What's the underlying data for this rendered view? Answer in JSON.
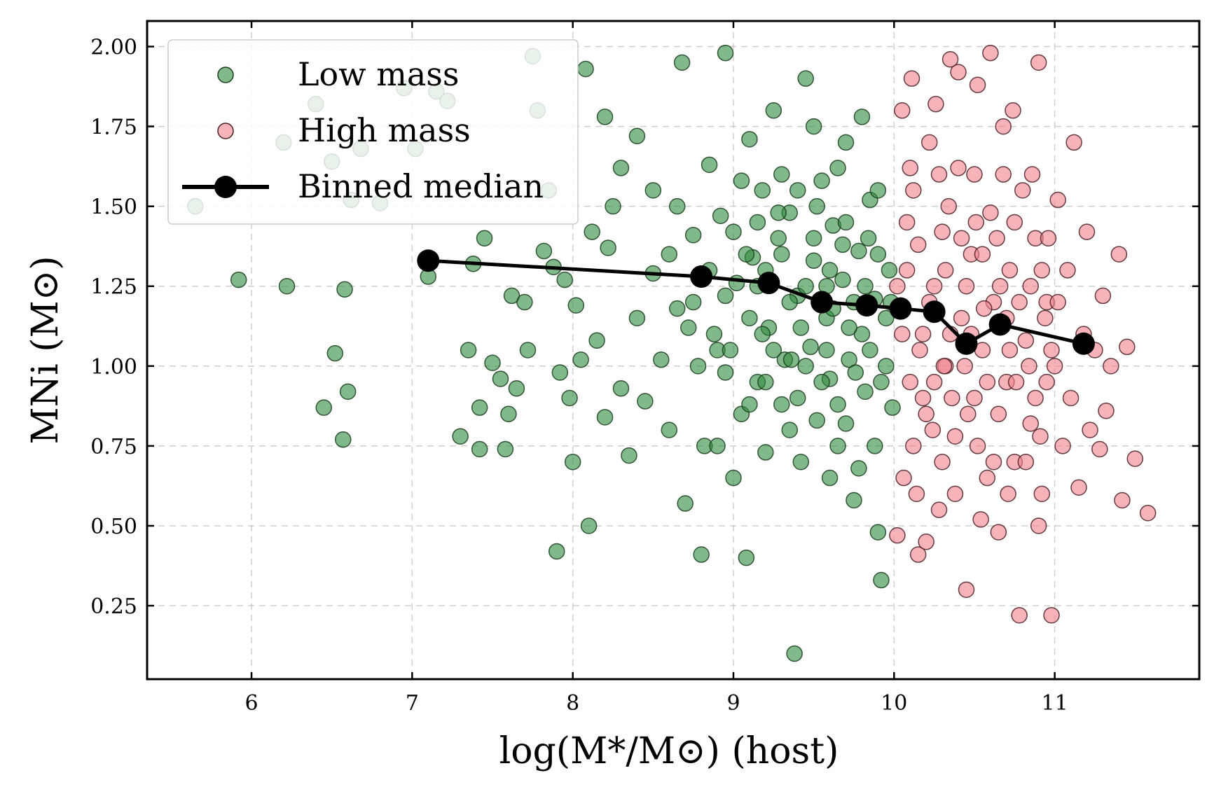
{
  "chart_data": {
    "type": "scatter",
    "title": "",
    "xlabel": "log(M*/M⊙) (host)",
    "ylabel": "MNi (M⊙)",
    "xlim": [
      5.35,
      11.9
    ],
    "ylim": [
      0.02,
      2.08
    ],
    "x_ticks": [
      6,
      7,
      8,
      9,
      10,
      11
    ],
    "x_tick_labels": [
      "6",
      "7",
      "8",
      "9",
      "10",
      "11"
    ],
    "y_ticks": [
      0.25,
      0.5,
      0.75,
      1.0,
      1.25,
      1.5,
      1.75,
      2.0
    ],
    "y_tick_labels": [
      "0.25",
      "0.50",
      "0.75",
      "1.00",
      "1.25",
      "1.50",
      "1.75",
      "2.00"
    ],
    "grid": true,
    "legend_position": "top-left",
    "series": [
      {
        "name": "Low mass",
        "kind": "scatter",
        "color": "#2e8b3e",
        "edge_color": "#1a3d1f",
        "points": [
          [
            5.65,
            1.5
          ],
          [
            5.92,
            1.27
          ],
          [
            6.22,
            1.25
          ],
          [
            6.2,
            1.7
          ],
          [
            6.4,
            1.82
          ],
          [
            6.5,
            1.64
          ],
          [
            6.52,
            1.04
          ],
          [
            6.45,
            0.87
          ],
          [
            6.57,
            0.77
          ],
          [
            6.6,
            0.92
          ],
          [
            6.58,
            1.24
          ],
          [
            6.62,
            1.52
          ],
          [
            6.68,
            1.68
          ],
          [
            6.8,
            1.51
          ],
          [
            6.95,
            1.87
          ],
          [
            7.02,
            1.68
          ],
          [
            7.1,
            1.28
          ],
          [
            7.15,
            1.86
          ],
          [
            7.22,
            1.83
          ],
          [
            7.3,
            0.78
          ],
          [
            7.35,
            1.05
          ],
          [
            7.38,
            1.32
          ],
          [
            7.42,
            0.74
          ],
          [
            7.45,
            1.4
          ],
          [
            7.42,
            0.87
          ],
          [
            7.5,
            1.01
          ],
          [
            7.55,
            0.96
          ],
          [
            7.58,
            0.74
          ],
          [
            7.6,
            0.85
          ],
          [
            7.62,
            1.22
          ],
          [
            7.65,
            0.93
          ],
          [
            7.7,
            1.2
          ],
          [
            7.72,
            1.05
          ],
          [
            7.75,
            1.97
          ],
          [
            7.78,
            1.8
          ],
          [
            7.82,
            1.36
          ],
          [
            7.85,
            1.55
          ],
          [
            7.88,
            1.31
          ],
          [
            7.9,
            0.42
          ],
          [
            7.92,
            0.98
          ],
          [
            7.95,
            1.27
          ],
          [
            7.98,
            0.9
          ],
          [
            8.0,
            0.7
          ],
          [
            8.02,
            1.19
          ],
          [
            8.05,
            1.02
          ],
          [
            8.08,
            1.93
          ],
          [
            8.1,
            0.5
          ],
          [
            8.12,
            1.42
          ],
          [
            8.15,
            1.08
          ],
          [
            8.2,
            0.84
          ],
          [
            8.22,
            1.37
          ],
          [
            8.25,
            1.5
          ],
          [
            8.3,
            0.93
          ],
          [
            8.35,
            0.72
          ],
          [
            8.4,
            1.15
          ],
          [
            8.45,
            0.89
          ],
          [
            8.5,
            1.29
          ],
          [
            8.55,
            1.02
          ],
          [
            8.6,
            0.8
          ],
          [
            8.65,
            1.18
          ],
          [
            8.68,
            1.95
          ],
          [
            8.7,
            0.57
          ],
          [
            8.72,
            1.12
          ],
          [
            8.75,
            1.41
          ],
          [
            8.8,
            0.41
          ],
          [
            8.82,
            0.75
          ],
          [
            8.85,
            1.63
          ],
          [
            8.9,
            1.05
          ],
          [
            8.92,
            1.47
          ],
          [
            8.95,
            1.98
          ],
          [
            9.0,
            0.65
          ],
          [
            9.02,
            1.26
          ],
          [
            9.05,
            0.85
          ],
          [
            9.08,
            0.4
          ],
          [
            9.1,
            1.71
          ],
          [
            9.12,
            1.34
          ],
          [
            9.15,
            0.95
          ],
          [
            9.18,
            1.55
          ],
          [
            9.2,
            0.73
          ],
          [
            9.22,
            1.12
          ],
          [
            9.25,
            1.8
          ],
          [
            9.28,
            1.4
          ],
          [
            9.3,
            0.88
          ],
          [
            9.32,
            1.02
          ],
          [
            9.35,
            1.48
          ],
          [
            9.38,
            0.1
          ],
          [
            9.4,
            1.22
          ],
          [
            9.42,
            0.7
          ],
          [
            9.45,
            1.9
          ],
          [
            9.48,
            1.06
          ],
          [
            9.5,
            1.33
          ],
          [
            9.52,
            0.83
          ],
          [
            9.55,
            1.58
          ],
          [
            9.58,
            1.15
          ],
          [
            9.6,
            0.96
          ],
          [
            9.62,
            1.44
          ],
          [
            9.65,
            0.75
          ],
          [
            9.68,
            1.27
          ],
          [
            9.7,
            1.7
          ],
          [
            9.72,
            1.02
          ],
          [
            9.75,
            0.58
          ],
          [
            9.78,
            1.36
          ],
          [
            9.8,
            1.1
          ],
          [
            9.82,
            0.92
          ],
          [
            9.85,
            1.52
          ],
          [
            9.88,
            1.21
          ],
          [
            9.9,
            0.48
          ],
          [
            9.92,
            0.33
          ],
          [
            9.95,
            1.0
          ],
          [
            9.97,
            1.3
          ],
          [
            9.99,
            0.87
          ],
          [
            9.6,
            0.65
          ],
          [
            9.7,
            0.82
          ],
          [
            9.4,
            0.9
          ],
          [
            9.2,
            1.3
          ],
          [
            9.0,
            1.42
          ],
          [
            8.9,
            0.75
          ],
          [
            9.3,
            1.6
          ],
          [
            9.5,
            1.75
          ],
          [
            9.65,
            1.62
          ],
          [
            9.8,
            1.78
          ],
          [
            9.9,
            1.55
          ],
          [
            9.1,
            1.15
          ],
          [
            9.35,
            1.2
          ],
          [
            9.6,
            1.3
          ],
          [
            9.85,
            1.05
          ],
          [
            9.45,
            1.0
          ],
          [
            9.75,
            1.2
          ],
          [
            9.55,
            0.95
          ],
          [
            9.25,
            1.05
          ],
          [
            9.15,
            1.45
          ],
          [
            8.95,
            1.22
          ],
          [
            9.05,
            1.58
          ],
          [
            8.85,
            1.3
          ],
          [
            8.78,
            1.0
          ],
          [
            8.6,
            1.35
          ],
          [
            8.5,
            1.55
          ],
          [
            8.4,
            1.72
          ],
          [
            8.3,
            1.62
          ],
          [
            8.2,
            1.78
          ],
          [
            8.65,
            1.5
          ],
          [
            8.75,
            1.2
          ],
          [
            9.4,
            1.55
          ],
          [
            9.5,
            1.4
          ],
          [
            9.7,
            1.45
          ],
          [
            9.9,
            1.35
          ],
          [
            9.95,
            1.15
          ],
          [
            9.88,
            0.75
          ],
          [
            9.78,
            0.68
          ],
          [
            9.65,
            0.88
          ],
          [
            9.35,
            0.8
          ],
          [
            9.2,
            0.95
          ],
          [
            9.1,
            0.88
          ],
          [
            8.95,
            0.98
          ],
          [
            9.45,
            1.25
          ],
          [
            9.58,
            1.05
          ],
          [
            9.72,
            1.12
          ],
          [
            9.82,
            1.25
          ],
          [
            9.98,
            1.2
          ],
          [
            9.3,
            1.35
          ],
          [
            9.15,
            1.25
          ],
          [
            8.88,
            1.1
          ],
          [
            9.62,
            1.18
          ],
          [
            9.92,
            0.95
          ],
          [
            9.84,
            1.4
          ],
          [
            9.52,
            1.5
          ],
          [
            9.28,
            1.48
          ],
          [
            9.08,
            1.35
          ],
          [
            8.98,
            1.05
          ],
          [
            9.42,
            1.12
          ],
          [
            9.68,
            1.38
          ],
          [
            9.76,
            0.98
          ],
          [
            9.58,
            1.25
          ],
          [
            9.36,
            1.02
          ],
          [
            9.18,
            1.1
          ]
        ]
      },
      {
        "name": "High mass",
        "kind": "scatter",
        "color": "#f0808c",
        "edge_color": "#4a1f24",
        "points": [
          [
            10.02,
            0.47
          ],
          [
            10.05,
            1.8
          ],
          [
            10.08,
            1.3
          ],
          [
            10.1,
            0.95
          ],
          [
            10.12,
            1.55
          ],
          [
            10.15,
            0.41
          ],
          [
            10.18,
            1.1
          ],
          [
            10.2,
            0.85
          ],
          [
            10.22,
            1.7
          ],
          [
            10.25,
            1.25
          ],
          [
            10.28,
            0.55
          ],
          [
            10.3,
            1.42
          ],
          [
            10.32,
            1.0
          ],
          [
            10.35,
            1.96
          ],
          [
            10.38,
            0.78
          ],
          [
            10.4,
            1.62
          ],
          [
            10.42,
            1.15
          ],
          [
            10.45,
            0.3
          ],
          [
            10.48,
            1.35
          ],
          [
            10.5,
            0.9
          ],
          [
            10.52,
            1.88
          ],
          [
            10.55,
            1.05
          ],
          [
            10.58,
            0.65
          ],
          [
            10.6,
            1.48
          ],
          [
            10.62,
            1.2
          ],
          [
            10.65,
            0.48
          ],
          [
            10.68,
            1.75
          ],
          [
            10.7,
            0.95
          ],
          [
            10.72,
            1.3
          ],
          [
            10.75,
            0.7
          ],
          [
            10.78,
            0.22
          ],
          [
            10.8,
            1.55
          ],
          [
            10.82,
            1.08
          ],
          [
            10.85,
            0.82
          ],
          [
            10.88,
            1.4
          ],
          [
            10.9,
            1.95
          ],
          [
            10.92,
            0.6
          ],
          [
            10.95,
            1.2
          ],
          [
            10.98,
            0.22
          ],
          [
            11.0,
            1.0
          ],
          [
            11.02,
            1.52
          ],
          [
            11.05,
            0.75
          ],
          [
            11.08,
            1.3
          ],
          [
            11.1,
            0.9
          ],
          [
            11.12,
            1.7
          ],
          [
            11.15,
            0.62
          ],
          [
            11.18,
            1.1
          ],
          [
            11.2,
            1.42
          ],
          [
            11.22,
            0.8
          ],
          [
            11.25,
            1.05
          ],
          [
            11.28,
            0.74
          ],
          [
            11.3,
            1.22
          ],
          [
            11.32,
            0.86
          ],
          [
            11.35,
            1.0
          ],
          [
            11.4,
            1.35
          ],
          [
            11.42,
            0.58
          ],
          [
            11.45,
            1.06
          ],
          [
            11.5,
            0.71
          ],
          [
            11.58,
            0.54
          ],
          [
            10.2,
            0.45
          ],
          [
            10.4,
            1.92
          ],
          [
            10.6,
            1.98
          ],
          [
            10.1,
            1.62
          ],
          [
            10.3,
            0.7
          ],
          [
            10.5,
            1.6
          ],
          [
            10.7,
            1.15
          ],
          [
            10.9,
            0.5
          ],
          [
            10.05,
            1.1
          ],
          [
            10.25,
            0.95
          ],
          [
            10.45,
            1.25
          ],
          [
            10.65,
            0.85
          ],
          [
            10.85,
            1.25
          ],
          [
            10.15,
            1.38
          ],
          [
            10.35,
            1.1
          ],
          [
            10.55,
            1.35
          ],
          [
            10.75,
            1.45
          ],
          [
            10.95,
            0.95
          ],
          [
            10.12,
            0.75
          ],
          [
            10.32,
            1.3
          ],
          [
            10.52,
            0.75
          ],
          [
            10.72,
            1.05
          ],
          [
            10.92,
            1.3
          ],
          [
            10.08,
            1.45
          ],
          [
            10.28,
            1.6
          ],
          [
            10.48,
            1.1
          ],
          [
            10.68,
            1.6
          ],
          [
            10.88,
            0.9
          ],
          [
            10.18,
            0.9
          ],
          [
            10.38,
            0.6
          ],
          [
            10.58,
            0.95
          ],
          [
            10.78,
            1.2
          ],
          [
            10.98,
            1.05
          ],
          [
            10.22,
            1.2
          ],
          [
            10.42,
            1.4
          ],
          [
            10.62,
            0.7
          ],
          [
            10.82,
            0.7
          ],
          [
            11.02,
            1.2
          ],
          [
            10.06,
            0.65
          ],
          [
            10.26,
            1.82
          ],
          [
            10.46,
            0.85
          ],
          [
            10.66,
            1.25
          ],
          [
            10.86,
            1.6
          ],
          [
            10.16,
            1.05
          ],
          [
            10.36,
            0.9
          ],
          [
            10.56,
            1.18
          ],
          [
            10.76,
            0.95
          ],
          [
            10.96,
            1.4
          ],
          [
            10.02,
            1.25
          ],
          [
            10.24,
            0.8
          ],
          [
            10.44,
            1.0
          ],
          [
            10.64,
            1.4
          ],
          [
            10.84,
            1.0
          ],
          [
            10.14,
            0.6
          ],
          [
            10.34,
            1.5
          ],
          [
            10.54,
            0.52
          ],
          [
            10.74,
            1.8
          ],
          [
            10.94,
            1.15
          ],
          [
            10.11,
            1.9
          ],
          [
            10.31,
            1.0
          ],
          [
            10.51,
            1.45
          ],
          [
            10.71,
            0.6
          ],
          [
            10.91,
            0.78
          ]
        ]
      },
      {
        "name": "Binned median",
        "kind": "line",
        "color": "#000000",
        "points": [
          [
            7.1,
            1.33
          ],
          [
            8.8,
            1.28
          ],
          [
            9.22,
            1.26
          ],
          [
            9.55,
            1.2
          ],
          [
            9.83,
            1.19
          ],
          [
            10.04,
            1.18
          ],
          [
            10.25,
            1.17
          ],
          [
            10.45,
            1.07
          ],
          [
            10.66,
            1.13
          ],
          [
            11.18,
            1.07
          ]
        ]
      }
    ]
  }
}
